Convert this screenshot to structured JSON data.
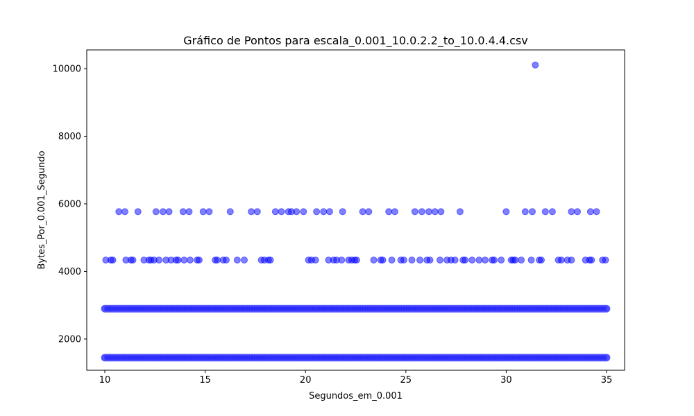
{
  "chart_data": {
    "type": "scatter",
    "title": "Gráfico de Pontos para escala_0.001_10.0.2.2_to_10.0.4.4.csv",
    "xlabel": "Segundos_em_0.001",
    "ylabel": "Bytes_Por_0.001_Segundo",
    "xlim": [
      9.1,
      35.9
    ],
    "ylim": [
      1075,
      10555
    ],
    "xticks": [
      10,
      15,
      20,
      25,
      30,
      35
    ],
    "yticks": [
      2000,
      4000,
      6000,
      8000,
      10000
    ],
    "grid": false,
    "series": [
      {
        "color": "#0000ff",
        "alpha": 0.5,
        "dense_bands": [
          {
            "y": 1448,
            "x_range": [
              10,
              35
            ]
          },
          {
            "y": 2896,
            "x_range": [
              10,
              35
            ]
          }
        ],
        "points": [
          {
            "x": 31.45,
            "y": 10108
          },
          {
            "x": 10.7,
            "y": 5768
          },
          {
            "x": 11.0,
            "y": 5768
          },
          {
            "x": 11.65,
            "y": 5768
          },
          {
            "x": 12.55,
            "y": 5768
          },
          {
            "x": 12.9,
            "y": 5768
          },
          {
            "x": 13.2,
            "y": 5768
          },
          {
            "x": 13.9,
            "y": 5768
          },
          {
            "x": 14.2,
            "y": 5768
          },
          {
            "x": 14.9,
            "y": 5768
          },
          {
            "x": 15.2,
            "y": 5768
          },
          {
            "x": 16.25,
            "y": 5768
          },
          {
            "x": 17.3,
            "y": 5768
          },
          {
            "x": 17.6,
            "y": 5768
          },
          {
            "x": 18.5,
            "y": 5768
          },
          {
            "x": 18.8,
            "y": 5768
          },
          {
            "x": 19.15,
            "y": 5768
          },
          {
            "x": 19.3,
            "y": 5768
          },
          {
            "x": 19.55,
            "y": 5768
          },
          {
            "x": 19.9,
            "y": 5768
          },
          {
            "x": 20.55,
            "y": 5768
          },
          {
            "x": 20.9,
            "y": 5768
          },
          {
            "x": 21.2,
            "y": 5768
          },
          {
            "x": 21.85,
            "y": 5768
          },
          {
            "x": 22.85,
            "y": 5768
          },
          {
            "x": 23.15,
            "y": 5768
          },
          {
            "x": 24.15,
            "y": 5768
          },
          {
            "x": 24.45,
            "y": 5768
          },
          {
            "x": 25.45,
            "y": 5768
          },
          {
            "x": 25.8,
            "y": 5768
          },
          {
            "x": 26.15,
            "y": 5768
          },
          {
            "x": 26.45,
            "y": 5768
          },
          {
            "x": 26.75,
            "y": 5768
          },
          {
            "x": 27.7,
            "y": 5768
          },
          {
            "x": 30.0,
            "y": 5768
          },
          {
            "x": 30.95,
            "y": 5768
          },
          {
            "x": 31.3,
            "y": 5768
          },
          {
            "x": 31.95,
            "y": 5768
          },
          {
            "x": 32.3,
            "y": 5768
          },
          {
            "x": 33.25,
            "y": 5768
          },
          {
            "x": 33.55,
            "y": 5768
          },
          {
            "x": 34.2,
            "y": 5768
          },
          {
            "x": 34.5,
            "y": 5768
          },
          {
            "x": 10.05,
            "y": 4336
          },
          {
            "x": 10.3,
            "y": 4336
          },
          {
            "x": 10.4,
            "y": 4336
          },
          {
            "x": 11.05,
            "y": 4336
          },
          {
            "x": 11.3,
            "y": 4336
          },
          {
            "x": 11.4,
            "y": 4336
          },
          {
            "x": 11.95,
            "y": 4336
          },
          {
            "x": 12.2,
            "y": 4336
          },
          {
            "x": 12.3,
            "y": 4336
          },
          {
            "x": 12.45,
            "y": 4336
          },
          {
            "x": 12.7,
            "y": 4336
          },
          {
            "x": 13.05,
            "y": 4336
          },
          {
            "x": 13.3,
            "y": 4336
          },
          {
            "x": 13.55,
            "y": 4336
          },
          {
            "x": 13.65,
            "y": 4336
          },
          {
            "x": 13.95,
            "y": 4336
          },
          {
            "x": 14.25,
            "y": 4336
          },
          {
            "x": 14.6,
            "y": 4336
          },
          {
            "x": 14.7,
            "y": 4336
          },
          {
            "x": 15.5,
            "y": 4336
          },
          {
            "x": 15.6,
            "y": 4336
          },
          {
            "x": 15.9,
            "y": 4336
          },
          {
            "x": 16.05,
            "y": 4336
          },
          {
            "x": 16.6,
            "y": 4336
          },
          {
            "x": 16.95,
            "y": 4336
          },
          {
            "x": 17.8,
            "y": 4336
          },
          {
            "x": 17.95,
            "y": 4336
          },
          {
            "x": 18.15,
            "y": 4336
          },
          {
            "x": 18.25,
            "y": 4336
          },
          {
            "x": 20.15,
            "y": 4336
          },
          {
            "x": 20.3,
            "y": 4336
          },
          {
            "x": 20.5,
            "y": 4336
          },
          {
            "x": 21.15,
            "y": 4336
          },
          {
            "x": 21.4,
            "y": 4336
          },
          {
            "x": 21.55,
            "y": 4336
          },
          {
            "x": 21.8,
            "y": 4336
          },
          {
            "x": 22.15,
            "y": 4336
          },
          {
            "x": 22.3,
            "y": 4336
          },
          {
            "x": 22.45,
            "y": 4336
          },
          {
            "x": 22.55,
            "y": 4336
          },
          {
            "x": 23.4,
            "y": 4336
          },
          {
            "x": 23.75,
            "y": 4336
          },
          {
            "x": 23.85,
            "y": 4336
          },
          {
            "x": 24.3,
            "y": 4336
          },
          {
            "x": 24.75,
            "y": 4336
          },
          {
            "x": 24.9,
            "y": 4336
          },
          {
            "x": 25.3,
            "y": 4336
          },
          {
            "x": 25.7,
            "y": 4336
          },
          {
            "x": 26.05,
            "y": 4336
          },
          {
            "x": 26.2,
            "y": 4336
          },
          {
            "x": 26.7,
            "y": 4336
          },
          {
            "x": 27.05,
            "y": 4336
          },
          {
            "x": 27.25,
            "y": 4336
          },
          {
            "x": 27.45,
            "y": 4336
          },
          {
            "x": 27.85,
            "y": 4336
          },
          {
            "x": 27.95,
            "y": 4336
          },
          {
            "x": 28.3,
            "y": 4336
          },
          {
            "x": 28.65,
            "y": 4336
          },
          {
            "x": 28.95,
            "y": 4336
          },
          {
            "x": 29.3,
            "y": 4336
          },
          {
            "x": 29.4,
            "y": 4336
          },
          {
            "x": 29.75,
            "y": 4336
          },
          {
            "x": 30.25,
            "y": 4336
          },
          {
            "x": 30.35,
            "y": 4336
          },
          {
            "x": 30.45,
            "y": 4336
          },
          {
            "x": 30.75,
            "y": 4336
          },
          {
            "x": 31.25,
            "y": 4336
          },
          {
            "x": 31.65,
            "y": 4336
          },
          {
            "x": 31.75,
            "y": 4336
          },
          {
            "x": 32.6,
            "y": 4336
          },
          {
            "x": 32.75,
            "y": 4336
          },
          {
            "x": 33.05,
            "y": 4336
          },
          {
            "x": 33.25,
            "y": 4336
          },
          {
            "x": 33.95,
            "y": 4336
          },
          {
            "x": 34.15,
            "y": 4336
          },
          {
            "x": 34.25,
            "y": 4336
          },
          {
            "x": 34.8,
            "y": 4336
          },
          {
            "x": 34.95,
            "y": 4336
          }
        ]
      }
    ]
  }
}
